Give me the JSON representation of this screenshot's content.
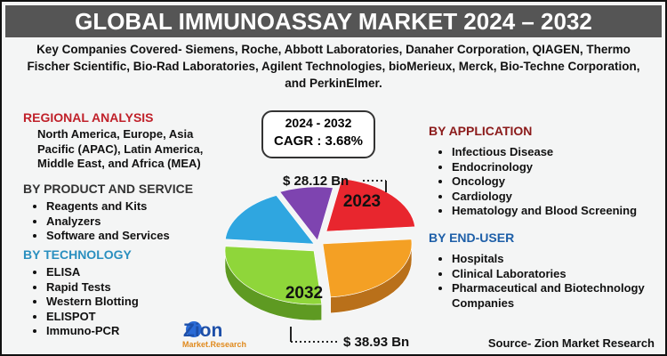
{
  "header": {
    "title": "GLOBAL IMMUNOASSAY MARKET 2024 – 2032",
    "companies": "Key Companies Covered- Siemens, Roche, Abbott Laboratories, Danaher Corporation, QIAGEN, Thermo Fischer Scientific, Bio-Rad Laboratories, Agilent Technologies, bioMerieux, Merck, Bio-Techne Corporation, and PerkinElmer."
  },
  "regional": {
    "heading": "REGIONAL ANALYSIS",
    "text": "North America, Europe, Asia Pacific (APAC), Latin America, Middle East, and Africa (MEA)"
  },
  "product": {
    "heading": "BY PRODUCT AND SERVICE",
    "items": [
      "Reagents and Kits",
      "Analyzers",
      "Software and Services"
    ]
  },
  "technology": {
    "heading": "BY TECHNOLOGY",
    "items": [
      "ELISA",
      "Rapid Tests",
      "Western Blotting",
      "ELISPOT",
      "Immuno-PCR"
    ]
  },
  "application": {
    "heading": "BY APPLICATION",
    "items": [
      "Infectious Disease",
      "Endocrinology",
      "Oncology",
      "Cardiology",
      "Hematology and Blood Screening"
    ]
  },
  "end_user": {
    "heading": "BY END-USER",
    "items": [
      "Hospitals",
      "Clinical Laboratories",
      "Pharmaceutical and Biotechnology Companies"
    ]
  },
  "center": {
    "period": "2024 - 2032",
    "cagr": "CAGR : 3.68%",
    "value_2023": "$ 28.12 Bn",
    "label_2023": "2023",
    "label_2032": "2032",
    "value_2032": "$ 38.93 Bn"
  },
  "logo": {
    "name": "Zion",
    "sub": "Market.Research"
  },
  "source": "Source- Zion Market Research"
}
